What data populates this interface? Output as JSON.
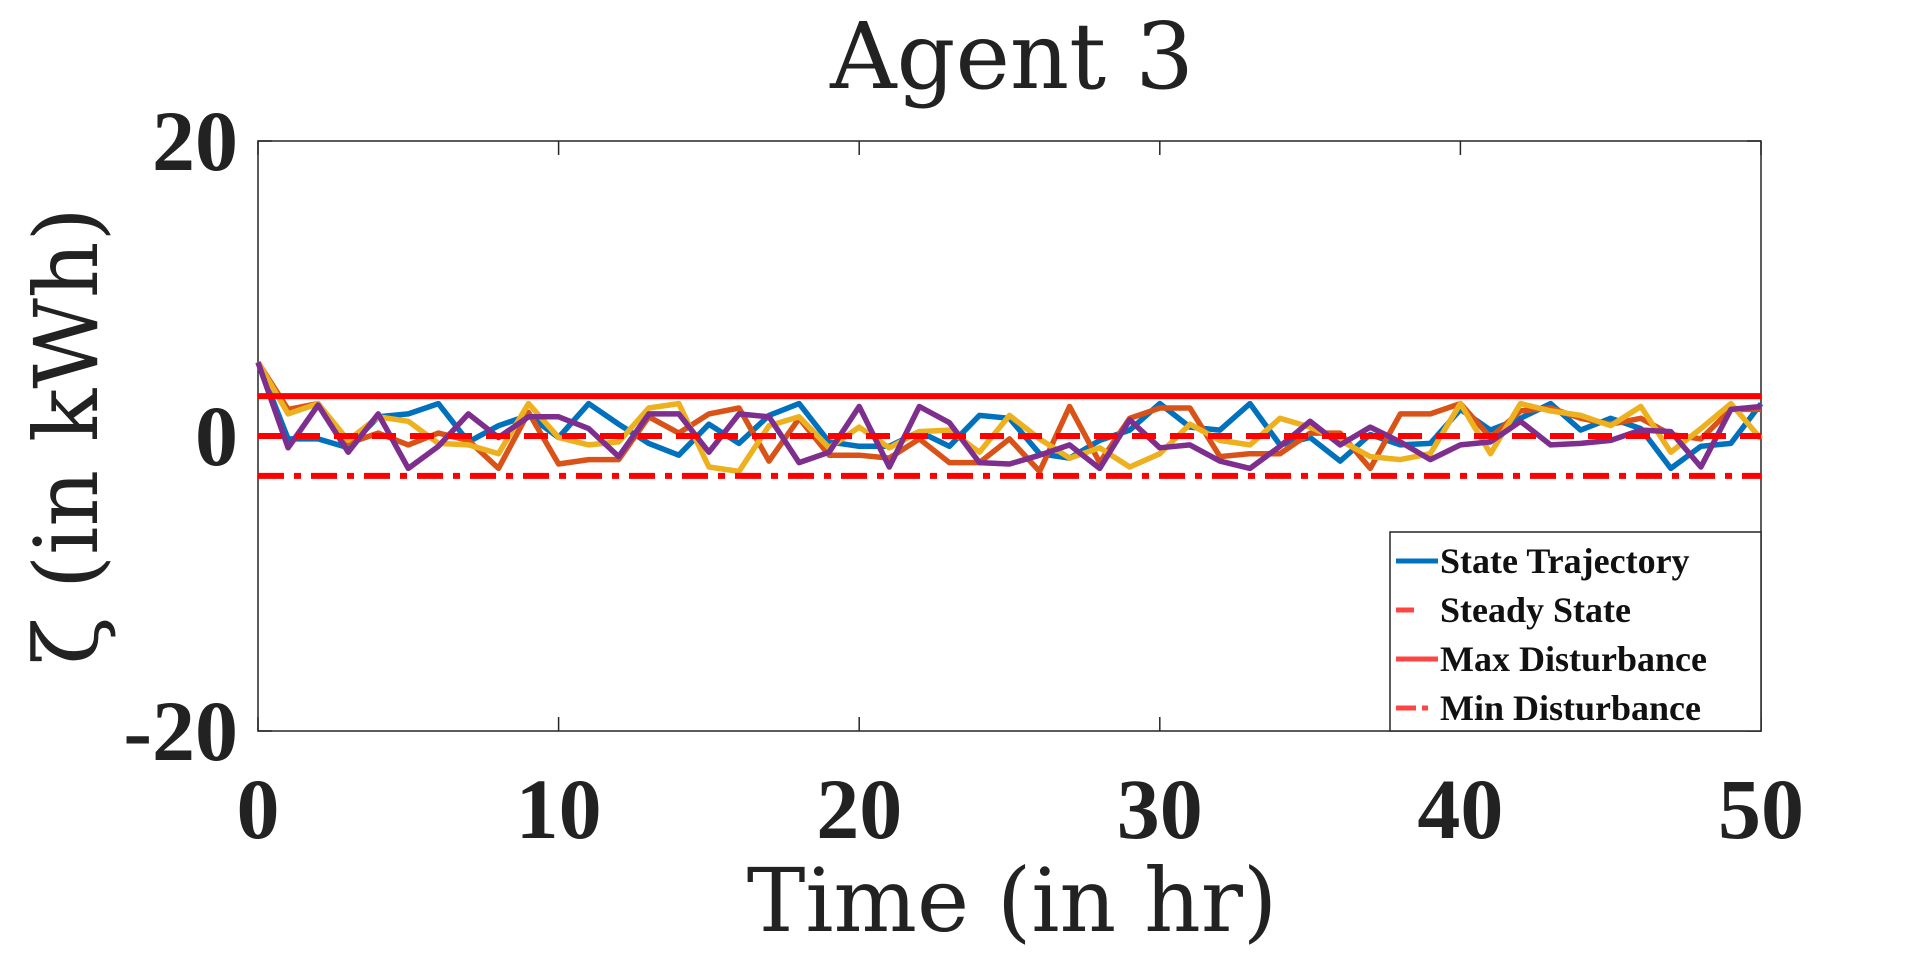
{
  "chart_data": {
    "type": "line",
    "title": "Agent 3",
    "xlabel": "Time (in hr)",
    "ylabel": "ζ (in kWh)",
    "xlim": [
      0,
      50
    ],
    "ylim": [
      -20,
      20
    ],
    "xticks": [
      0,
      10,
      20,
      30,
      40,
      50
    ],
    "yticks": [
      -20,
      0,
      20
    ],
    "xtick_labels": [
      "0",
      "10",
      "20",
      "30",
      "40",
      "50"
    ],
    "ytick_labels": [
      "-20",
      "0",
      "20"
    ],
    "grid": false,
    "legend_position": "bottom-right",
    "colors": {
      "trajectory_1": "#0072BD",
      "trajectory_2": "#D95319",
      "trajectory_3": "#EDB120",
      "trajectory_4": "#7E2F8E",
      "reference": "#FF0000"
    },
    "reference_lines": [
      {
        "name": "Steady State",
        "y": 0,
        "style": "dashed",
        "color": "#FF0000"
      },
      {
        "name": "Max Disturbance",
        "y": 2.7,
        "style": "solid",
        "color": "#FF0000"
      },
      {
        "name": "Min Disturbance",
        "y": -2.7,
        "style": "dashdot",
        "color": "#FF0000"
      }
    ],
    "legend": [
      {
        "label": "State Trajectory",
        "style": "solid",
        "color": "#0072BD"
      },
      {
        "label": "Steady State",
        "style": "dashed",
        "color": "#FF4444"
      },
      {
        "label": "Max Disturbance",
        "style": "solid",
        "color": "#FF4444"
      },
      {
        "label": "Min Disturbance",
        "style": "dashdot",
        "color": "#FF4444"
      }
    ],
    "x": [
      0,
      1,
      2,
      3,
      4,
      5,
      6,
      7,
      8,
      9,
      10,
      11,
      12,
      13,
      14,
      15,
      16,
      17,
      18,
      19,
      20,
      21,
      22,
      23,
      24,
      25,
      26,
      27,
      28,
      29,
      30,
      31,
      32,
      33,
      34,
      35,
      36,
      37,
      38,
      39,
      40,
      41,
      42,
      43,
      44,
      45,
      46,
      47,
      48,
      49,
      50
    ],
    "series": [
      {
        "values": [
          5,
          -0.2,
          -0.2,
          -0.8,
          1.3,
          1.5,
          2.2,
          -0.4,
          0.7,
          1.4,
          -0.1,
          2.2,
          0.8,
          -0.5,
          -1.3,
          0.8,
          -0.5,
          1.4,
          2.2,
          -0.4,
          -0.7,
          -0.7,
          0.3,
          -0.7,
          1.4,
          1.2,
          -1.2,
          -1.5,
          -0.3,
          0.4,
          2.2,
          0.6,
          0.4,
          2.2,
          -0.6,
          -0.1,
          -1.7,
          0.1,
          -0.6,
          -0.5,
          1.8,
          0.4,
          1.2,
          2.2,
          0.4,
          1.2,
          0.5,
          -2.2,
          -0.7,
          -0.5,
          2.2
        ]
      },
      {
        "values": [
          5,
          1.8,
          2.2,
          -0.5,
          0.2,
          -0.6,
          0.2,
          -0.3,
          -2.2,
          1.6,
          -1.9,
          -1.6,
          -1.6,
          1.3,
          0.2,
          1.5,
          1.9,
          -1.7,
          1.2,
          -1.3,
          -1.3,
          -1.5,
          -0.2,
          -1.8,
          -1.8,
          -0.2,
          -2.4,
          2.0,
          -1.8,
          1.2,
          1.9,
          1.9,
          -1.4,
          -1.2,
          -1.2,
          0.2,
          0.2,
          -2.2,
          1.5,
          1.5,
          2.2,
          -0.1,
          1.7,
          1.9,
          1.2,
          0.8,
          1.2,
          0.1,
          -0.2,
          1.8,
          1.8
        ]
      },
      {
        "values": [
          5,
          1.5,
          2.2,
          -0.3,
          1.3,
          1.0,
          -0.5,
          -0.6,
          -1.2,
          2.2,
          -0.1,
          -0.6,
          -0.4,
          1.9,
          2.2,
          -2.1,
          -2.4,
          0.7,
          1.3,
          -0.8,
          0.6,
          -0.8,
          0.3,
          0.4,
          -1.1,
          1.4,
          -0.2,
          -1.5,
          -0.8,
          -2.1,
          -1.2,
          0.8,
          -0.3,
          -0.6,
          1.2,
          0.6,
          -0.3,
          -1.4,
          -1.6,
          -1.2,
          2.2,
          -1.2,
          2.2,
          1.7,
          1.4,
          0.7,
          2.0,
          -1.1,
          0.5,
          2.2,
          -0.2
        ]
      },
      {
        "values": [
          5,
          -0.8,
          2.1,
          -1.1,
          1.5,
          -2.2,
          -0.7,
          1.5,
          -0.1,
          1.3,
          1.3,
          0.5,
          -1.4,
          1.5,
          1.5,
          -1.1,
          1.5,
          1.3,
          -1.8,
          -1.1,
          2.0,
          -2.1,
          2.0,
          0.9,
          -1.8,
          -1.9,
          -1.3,
          -0.6,
          -2.2,
          1.1,
          -0.8,
          -0.6,
          -1.7,
          -2.2,
          -0.7,
          1.0,
          -0.6,
          0.6,
          -0.4,
          -1.6,
          -0.6,
          -0.4,
          1.0,
          -0.6,
          -0.5,
          -0.3,
          0.4,
          0.3,
          -2.1,
          1.8,
          2.0
        ]
      }
    ]
  }
}
